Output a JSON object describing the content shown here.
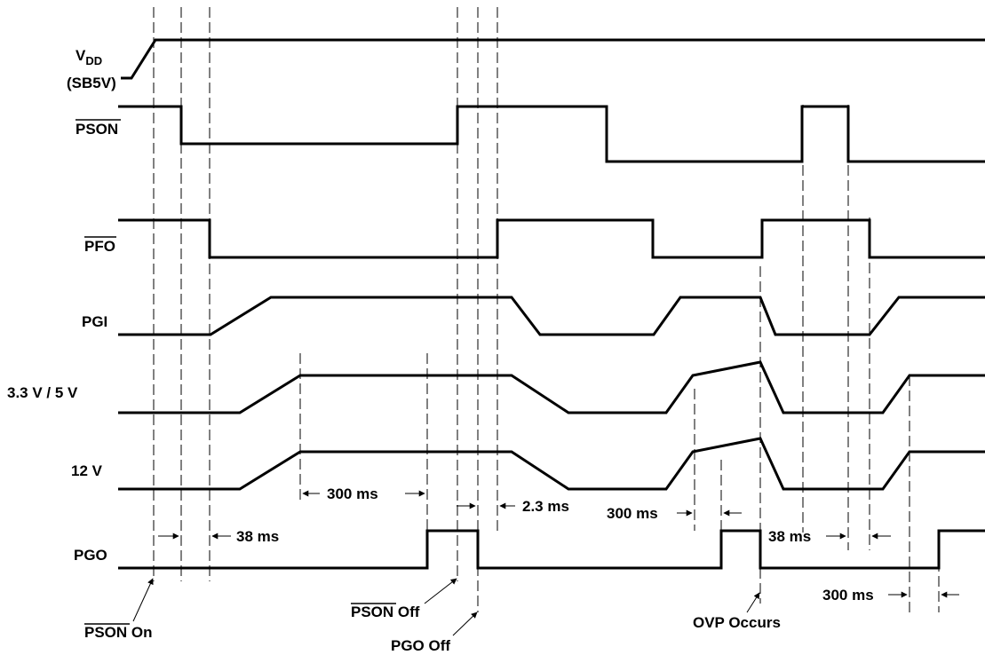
{
  "signals": {
    "vdd_main": "V",
    "vdd_sub": "DD",
    "vdd_alias": "(SB5V)",
    "pson": "PSON",
    "pfo": "PFO",
    "pgi": "PGI",
    "v33_5": "3.3 V / 5 V",
    "v12": "12 V",
    "pgo": "PGO"
  },
  "timing": {
    "t_300ms_a": "300 ms",
    "t_2_3ms": "2.3 ms",
    "t_300ms_b": "300 ms",
    "t_38ms_a": "38 ms",
    "t_38ms_b": "38 ms",
    "t_300ms_c": "300 ms"
  },
  "events": {
    "pson_on_main": "PSON",
    "pson_on_suffix": " On",
    "pson_off_main": "PSON",
    "pson_off_suffix": " Off",
    "pgo_off": "PGO Off",
    "ovp": "OVP Occurs"
  }
}
